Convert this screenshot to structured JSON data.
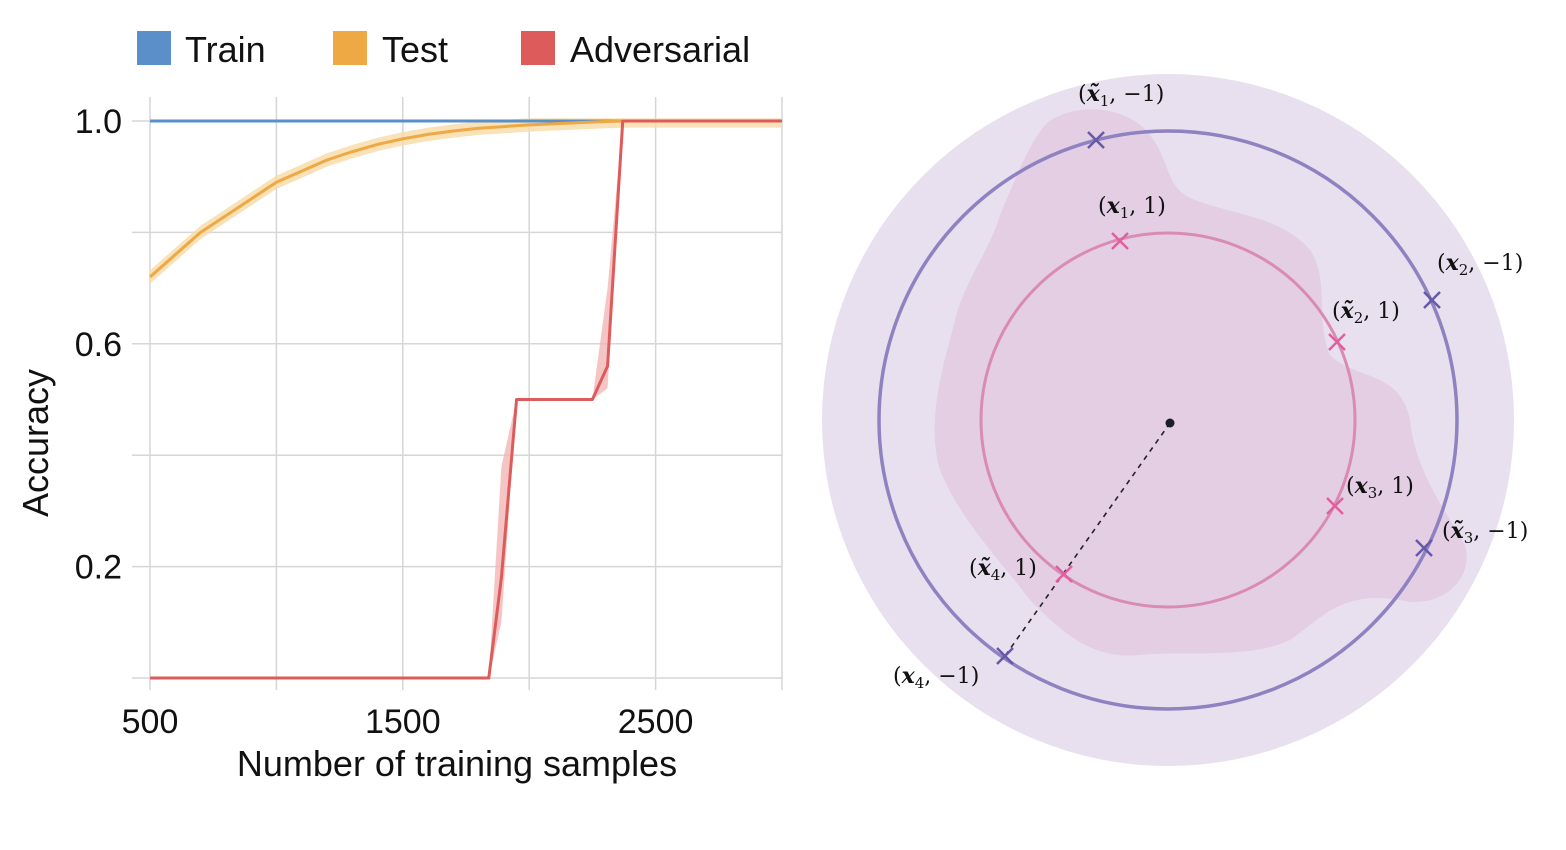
{
  "chart_data": [
    {
      "type": "line",
      "xlabel": "Number of training samples",
      "ylabel": "Accuracy",
      "xlim": [
        500,
        3000
      ],
      "ylim": [
        -0.02,
        1.04
      ],
      "xticks": [
        500,
        1500,
        2500
      ],
      "xtick_labels": [
        "500",
        "1500",
        "2500"
      ],
      "yticks": [
        0.2,
        0.6,
        1.0
      ],
      "ytick_labels": [
        "0.2",
        "0.6",
        "1.0"
      ],
      "grid_x": [
        500,
        1000,
        1500,
        2000,
        2500,
        3000
      ],
      "grid_y": [
        0.0,
        0.2,
        0.4,
        0.6,
        0.8,
        1.0
      ],
      "legend_position": "top",
      "series": [
        {
          "name": "Train",
          "color": "#5b8fc9",
          "x": [
            500,
            3000
          ],
          "y": [
            1.0,
            1.0
          ]
        },
        {
          "name": "Test",
          "color": "#eea844",
          "band_color": "#f7d9a6",
          "x": [
            500,
            600,
            700,
            800,
            900,
            1000,
            1100,
            1200,
            1300,
            1400,
            1500,
            1600,
            1700,
            1800,
            1900,
            2000,
            2100,
            2200,
            2300,
            2400,
            2600,
            3000
          ],
          "y": [
            0.72,
            0.76,
            0.8,
            0.83,
            0.86,
            0.89,
            0.91,
            0.93,
            0.945,
            0.958,
            0.968,
            0.976,
            0.982,
            0.987,
            0.99,
            0.993,
            0.995,
            0.997,
            0.999,
            1.0,
            1.0,
            1.0
          ],
          "band": 0.012
        },
        {
          "name": "Adversarial",
          "color": "#dd5b5b",
          "band_color": "#f3b7b7",
          "x": [
            500,
            1840,
            1890,
            1950,
            2000,
            2100,
            2250,
            2310,
            2370,
            2500,
            3000
          ],
          "y": [
            0.0,
            0.0,
            0.18,
            0.5,
            0.5,
            0.5,
            0.5,
            0.56,
            1.0,
            1.0,
            1.0
          ],
          "band_lower": [
            0.0,
            0.0,
            0.1,
            0.5,
            0.5,
            0.5,
            0.5,
            0.52,
            1.0,
            1.0,
            1.0
          ],
          "band_upper": [
            0.0,
            0.0,
            0.38,
            0.5,
            0.5,
            0.5,
            0.5,
            0.7,
            1.0,
            1.0,
            1.0
          ]
        }
      ]
    },
    {
      "type": "diagram",
      "center_marker": "dot",
      "outer_circle_color": "#8e82c0",
      "inner_circle_color": "#d98bb4",
      "outer_point_color": "#6559a8",
      "inner_point_color": "#e0609e",
      "points": [
        {
          "id": "xt1",
          "label_var": "x̃",
          "label_sub": "1",
          "label_val": "−1",
          "ring": "outer"
        },
        {
          "id": "x2",
          "label_var": "x",
          "label_sub": "2",
          "label_val": "−1",
          "ring": "outer"
        },
        {
          "id": "xt3",
          "label_var": "x̃",
          "label_sub": "3",
          "label_val": "−1",
          "ring": "outer"
        },
        {
          "id": "x4",
          "label_var": "x",
          "label_sub": "4",
          "label_val": "−1",
          "ring": "outer"
        },
        {
          "id": "x1",
          "label_var": "x",
          "label_sub": "1",
          "label_val": "1",
          "ring": "inner"
        },
        {
          "id": "xt2",
          "label_var": "x̃",
          "label_sub": "2",
          "label_val": "1",
          "ring": "inner"
        },
        {
          "id": "x3",
          "label_var": "x",
          "label_sub": "3",
          "label_val": "1",
          "ring": "inner"
        },
        {
          "id": "xt4",
          "label_var": "x̃",
          "label_sub": "4",
          "label_val": "1",
          "ring": "inner"
        }
      ]
    }
  ]
}
